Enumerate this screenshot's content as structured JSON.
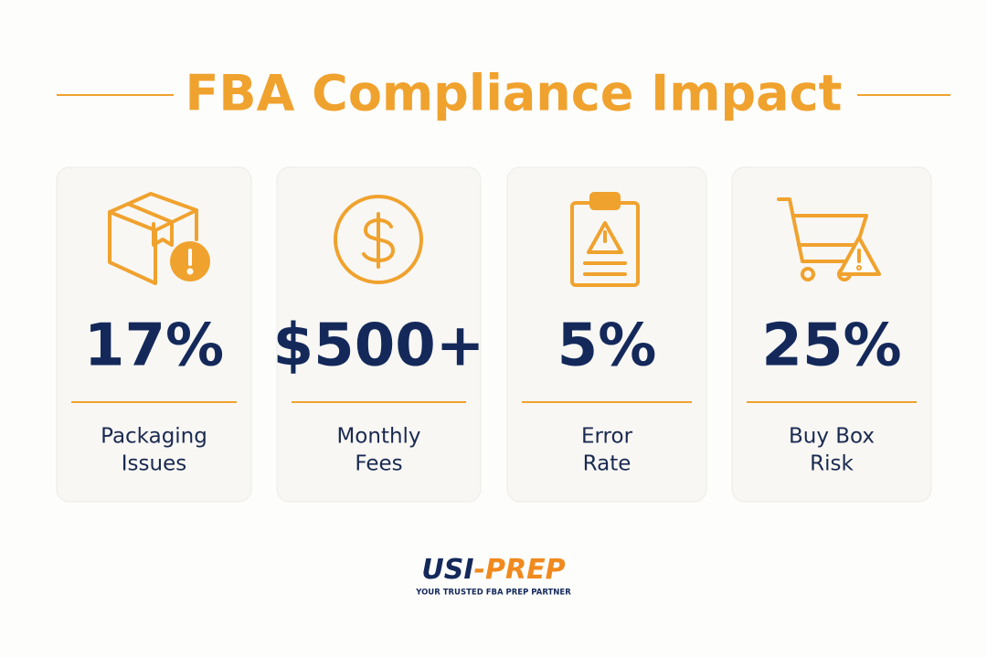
{
  "header": {
    "title": "FBA Compliance Impact"
  },
  "cards": [
    {
      "value": "17%",
      "label": [
        "Packaging",
        "Issues"
      ]
    },
    {
      "value": "$500+",
      "label": [
        "Monthly",
        "Fees"
      ]
    },
    {
      "value": "5%",
      "label": [
        "Error",
        "Rate"
      ]
    },
    {
      "value": "25%",
      "label": [
        "Buy Box",
        "Risk"
      ]
    }
  ],
  "footer": {
    "logo": [
      "USI",
      "-PREP"
    ],
    "tagline": "YOUR TRUSTED FBA PREP PARTNER"
  }
}
